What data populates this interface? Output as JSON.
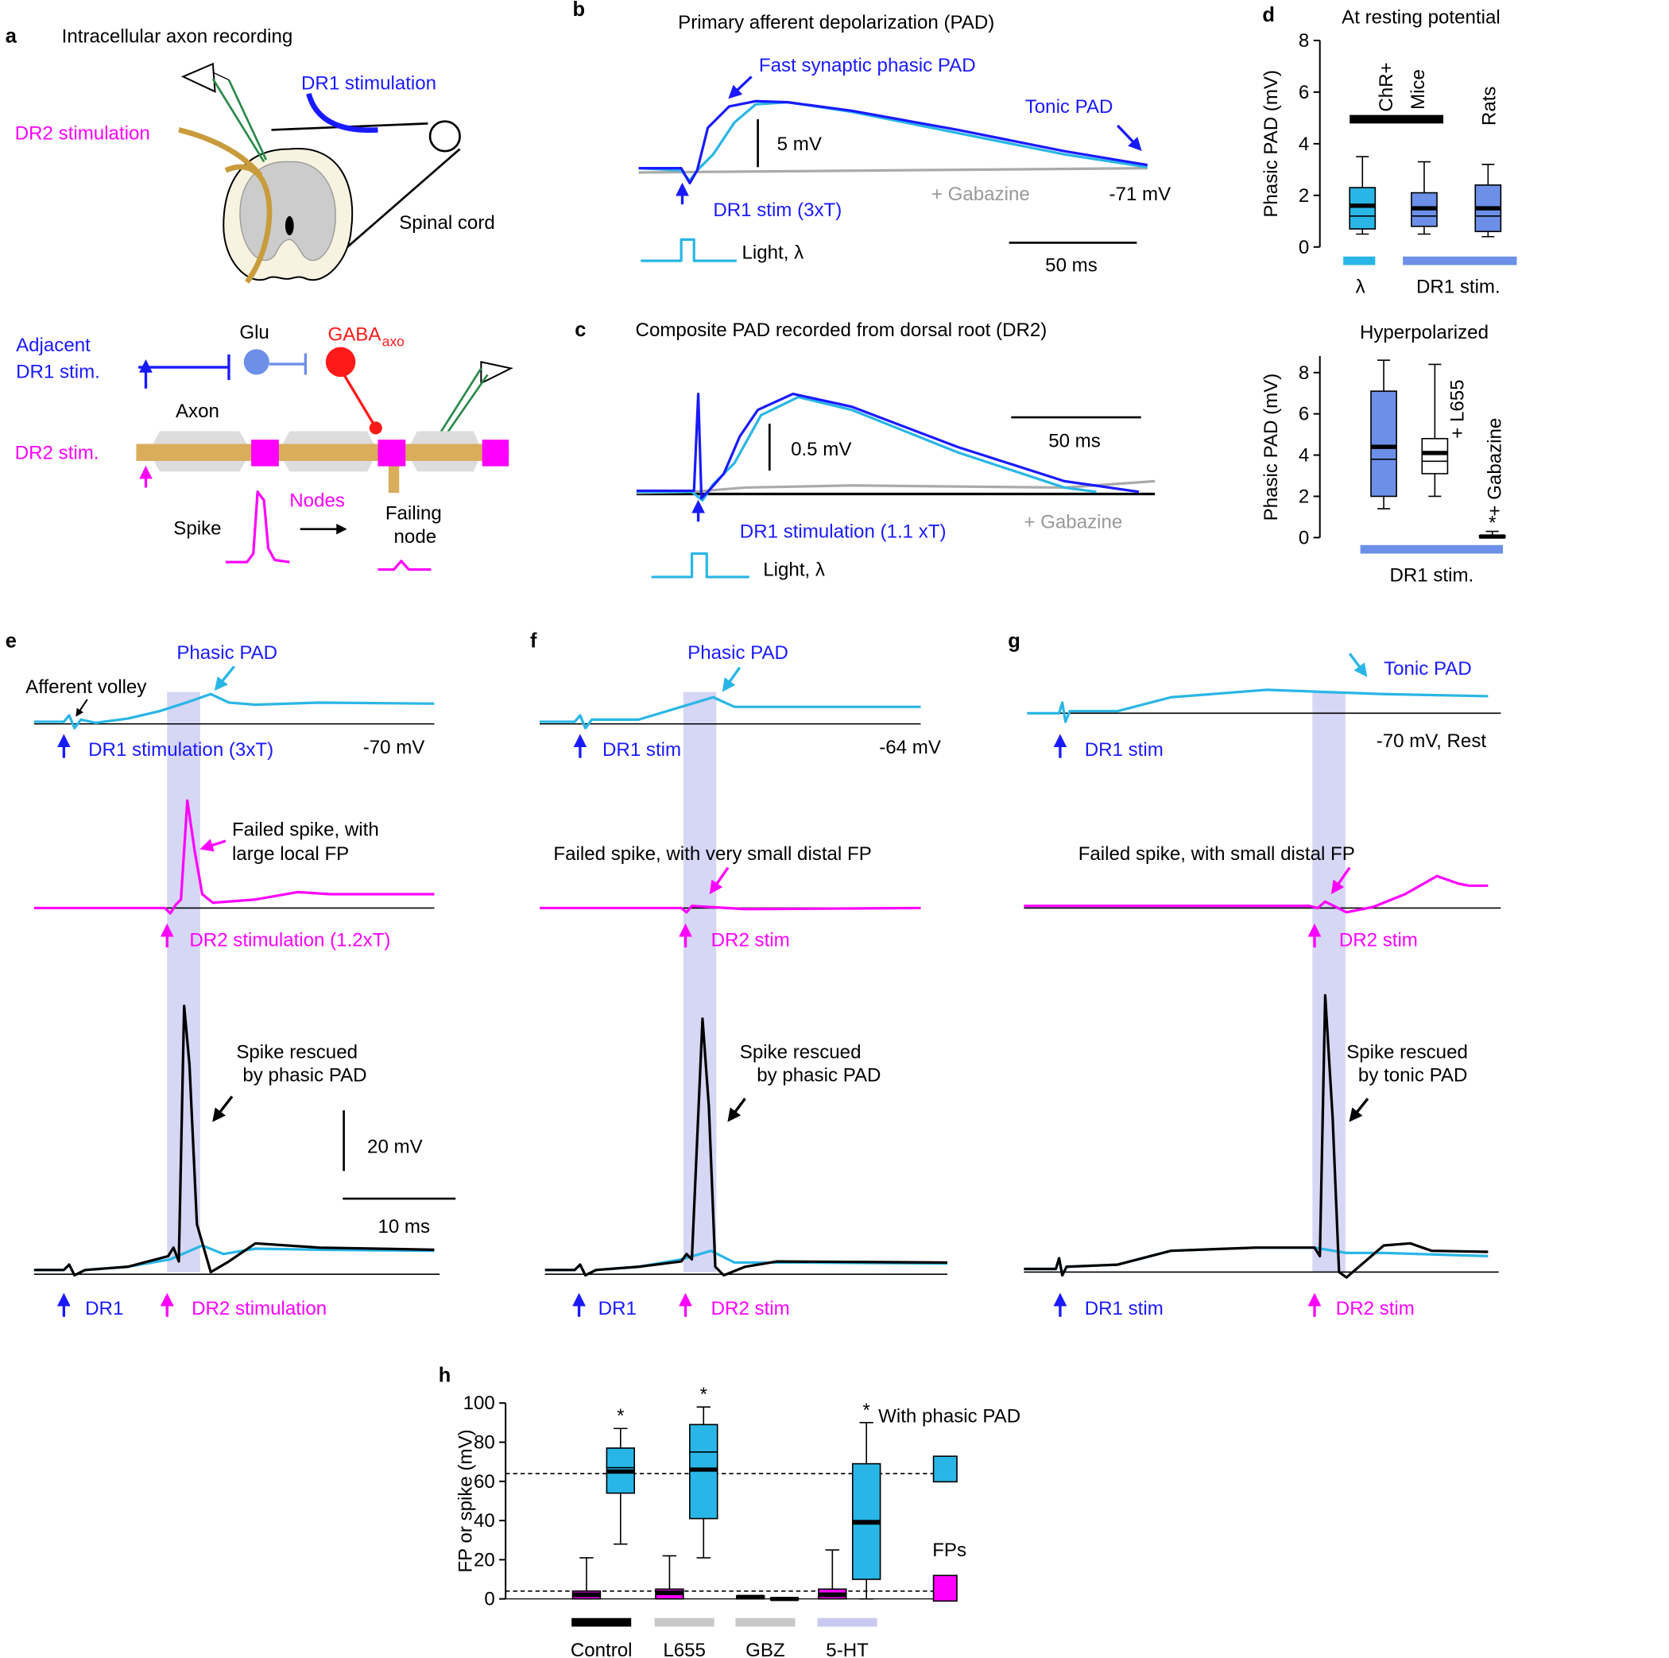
{
  "panels": {
    "a": {
      "letter": "a",
      "title": "Intracellular axon recording",
      "dr1": "DR1 stimulation",
      "dr2": "DR2 stimulation",
      "cord": "Spinal cord",
      "adjacent": "Adjacent",
      "dr1stim": "DR1 stim.",
      "glu": "Glu",
      "gaba": "GABA",
      "gaba_sub": "axo",
      "axon": "Axon",
      "dr2stim": "DR2 stim.",
      "nodes": "Nodes",
      "spike": "Spike",
      "failing": "Failing",
      "node": "node"
    },
    "b": {
      "letter": "b",
      "title": "Primary afferent depolarization (PAD)",
      "fast": "Fast synaptic phasic PAD",
      "tonic": "Tonic PAD",
      "scale": "5 mV",
      "stim": "DR1 stim (3xT)",
      "gabazine": "+ Gabazine",
      "vm": "-71 mV",
      "light": "Light, λ",
      "time": "50 ms"
    },
    "c": {
      "letter": "c",
      "title": "Composite PAD recorded from dorsal root (DR2)",
      "scale": "0.5 mV",
      "time": "50 ms",
      "stim": "DR1 stimulation (1.1 xT)",
      "gabazine": "+ Gabazine",
      "light": "Light, λ"
    },
    "e": {
      "letter": "e",
      "phasic": "Phasic PAD",
      "volley": "Afferent volley",
      "stim": "DR1 stimulation (3xT)",
      "vm": "-70 mV",
      "failed1": "Failed spike, with",
      "failed2": "large local FP",
      "dr2": "DR2 stimulation (1.2xT)",
      "rescued1": "Spike rescued",
      "rescued2": "by phasic PAD",
      "scale_v": "20 mV",
      "scale_t": "10 ms",
      "dr1b": "DR1",
      "dr2b": "DR2 stimulation"
    },
    "f": {
      "letter": "f",
      "phasic": "Phasic PAD",
      "stim": "DR1 stim",
      "vm": "-64 mV",
      "failed": "Failed spike, with very small distal FP",
      "dr2": "DR2 stim",
      "rescued1": "Spike rescued",
      "rescued2": "by phasic PAD",
      "dr1b": "DR1",
      "dr2b": "DR2 stim"
    },
    "g": {
      "letter": "g",
      "tonic": "Tonic PAD",
      "stim": "DR1 stim",
      "vm": "-70 mV, Rest",
      "failed": "Failed spike, with small distal FP",
      "dr2": "DR2 stim",
      "rescued1": "Spike rescued",
      "rescued2": "by tonic PAD",
      "dr1b": "DR1 stim",
      "dr2b": "DR2 stim"
    }
  },
  "chart_data": [
    {
      "type": "box",
      "panel_label": "d",
      "title": "At resting potential",
      "y_label": "Phasic PAD (mV)",
      "ylim": [
        0,
        8
      ],
      "yticks": [
        0,
        2,
        4,
        6,
        8
      ],
      "boxes": [
        {
          "color": "#29b6e6",
          "whisker_low": 0.5,
          "q1": 0.7,
          "median": 1.6,
          "mean": 1.2,
          "q3": 2.3,
          "whisker_high": 3.5
        },
        {
          "color": "#6c8fe8",
          "whisker_low": 0.5,
          "q1": 0.8,
          "median": 1.5,
          "mean": 1.2,
          "q3": 2.1,
          "whisker_high": 3.3
        },
        {
          "color": "#6c8fe8",
          "whisker_low": 0.4,
          "q1": 0.6,
          "median": 1.5,
          "mean": 1.2,
          "q3": 2.4,
          "whisker_high": 3.2
        }
      ],
      "annotations": [
        "ChR+",
        "Mice",
        "Rats"
      ],
      "groups": [
        "λ",
        "DR1 stim."
      ]
    },
    {
      "type": "box",
      "title": "Hyperpolarized",
      "y_label": "Phasic PAD (mV)",
      "ylim": [
        0,
        8.8
      ],
      "yticks": [
        0,
        2,
        4,
        6,
        8
      ],
      "boxes": [
        {
          "color": "#6c8fe8",
          "whisker_low": 1.4,
          "q1": 2.0,
          "median": 4.4,
          "mean": 3.8,
          "q3": 7.1,
          "whisker_high": 8.6
        },
        {
          "color": "#ffffff",
          "whisker_low": 2.0,
          "q1": 3.1,
          "median": 4.1,
          "mean": 3.7,
          "q3": 4.8,
          "whisker_high": 8.4
        },
        {
          "color": "#000000",
          "whisker_low": 0,
          "q1": 0,
          "median": 0.05,
          "mean": 0.05,
          "q3": 0.1,
          "whisker_high": 0.3
        }
      ],
      "annotations": [
        "+ L655",
        "+ Gabazine",
        "*"
      ],
      "groups": [
        "DR1 stim."
      ]
    },
    {
      "type": "box",
      "panel_label": "h",
      "y_label": "FP or spike (mV)",
      "ylim": [
        0,
        100
      ],
      "yticks": [
        0,
        20,
        40,
        60,
        80,
        100
      ],
      "ref_lines": [
        64,
        4
      ],
      "categories": [
        "Control",
        "L655",
        "GBZ",
        "5-HT"
      ],
      "category_colors": [
        "#000000",
        "#c8c8c8",
        "#c8c8c8",
        "#c8c8f0"
      ],
      "series": [
        {
          "name": "FPs",
          "color": "#ff00ff",
          "boxes": [
            {
              "whisker_low": 0,
              "q1": 0,
              "median": 2,
              "mean": 3,
              "q3": 4,
              "whisker_high": 21
            },
            {
              "whisker_low": 0,
              "q1": 0,
              "median": 3,
              "mean": 4,
              "q3": 5,
              "whisker_high": 22
            },
            {
              "whisker_low": 0,
              "q1": 0,
              "median": 1,
              "mean": 1,
              "q3": 1.5,
              "whisker_high": 1.5
            },
            {
              "whisker_low": 0,
              "q1": 0,
              "median": 2,
              "mean": 3,
              "q3": 5,
              "whisker_high": 25
            }
          ]
        },
        {
          "name": "With phasic PAD",
          "color": "#29b6e6",
          "significance": [
            "*",
            "*",
            null,
            "*"
          ],
          "boxes": [
            {
              "whisker_low": 28,
              "q1": 54,
              "median": 65,
              "mean": 67,
              "q3": 77,
              "whisker_high": 87
            },
            {
              "whisker_low": 21,
              "q1": 41,
              "median": 66,
              "mean": 75,
              "q3": 89,
              "whisker_high": 98
            },
            {
              "whisker_low": -0.5,
              "q1": -0.5,
              "median": 0,
              "mean": 0,
              "q3": 0.5,
              "whisker_high": 0.5
            },
            {
              "whisker_low": 0,
              "q1": 10,
              "median": 39,
              "mean": 40,
              "q3": 69,
              "whisker_high": 90
            }
          ]
        }
      ]
    }
  ]
}
